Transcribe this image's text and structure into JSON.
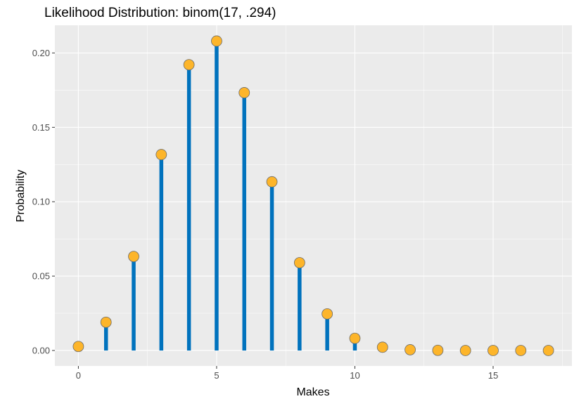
{
  "chart_data": {
    "type": "lollipop",
    "title": "Likelihood Distribution: binom(17, .294)",
    "xlabel": "Makes",
    "ylabel": "Probability",
    "xlim": [
      -0.85,
      17.85
    ],
    "ylim": [
      -0.0104,
      0.2186
    ],
    "x_ticks": [
      0,
      5,
      10,
      15
    ],
    "x_tick_labels": [
      "0",
      "5",
      "10",
      "15"
    ],
    "y_ticks": [
      0,
      0.05,
      0.1,
      0.15,
      0.2
    ],
    "y_tick_labels": [
      "0.00",
      "0.05",
      "0.10",
      "0.15",
      "0.20"
    ],
    "x_minor_ticks": [
      2.5,
      7.5,
      12.5,
      17.5
    ],
    "y_minor_ticks": [
      0.025,
      0.075,
      0.125,
      0.175
    ],
    "grid": true,
    "x": [
      0,
      1,
      2,
      3,
      4,
      5,
      6,
      7,
      8,
      9,
      10,
      11,
      12,
      13,
      14,
      15,
      16,
      17
    ],
    "values": [
      0.0027,
      0.019,
      0.0632,
      0.1317,
      0.1921,
      0.208,
      0.1733,
      0.1134,
      0.059,
      0.0246,
      0.0082,
      0.0022,
      0.0005,
      0.0001,
      0.0,
      0.0,
      0.0,
      0.0
    ],
    "colors": {
      "panel_background": "#ebebeb",
      "grid_major": "#ffffff",
      "stem": "#0072bd",
      "point_fill": "#fdb52a",
      "point_stroke": "#6b6b6b",
      "tick_label": "#4d4d4d",
      "text": "#000000"
    }
  }
}
